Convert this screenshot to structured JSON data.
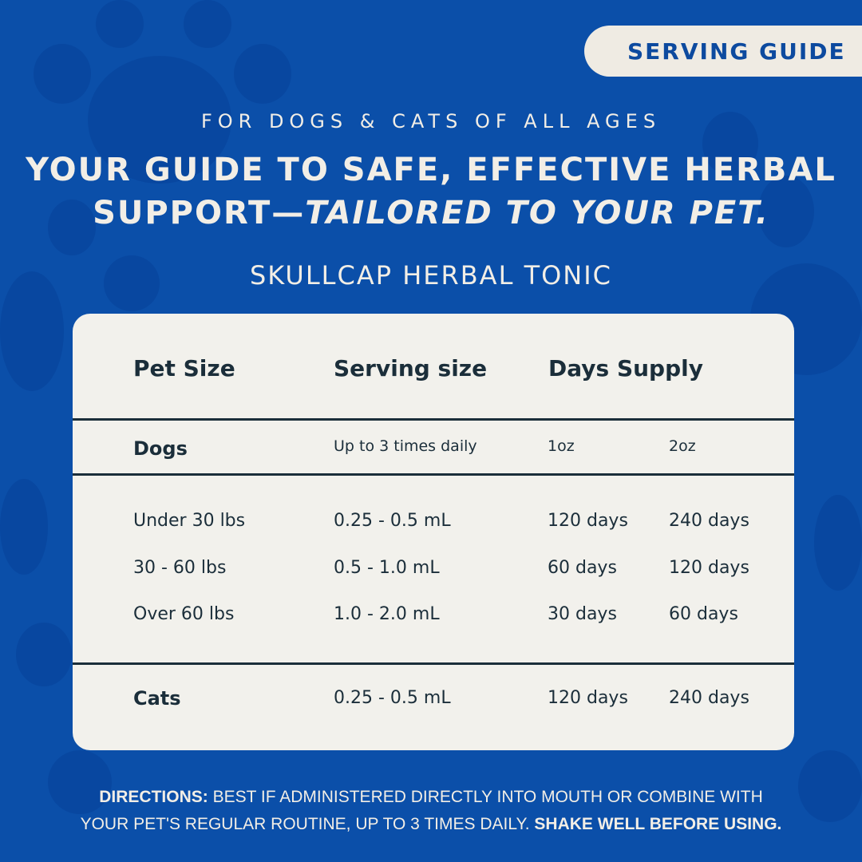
{
  "badge": "SERVING GUIDE",
  "subtitle": "FOR DOGS & CATS OF ALL AGES",
  "headline": {
    "line1": "YOUR GUIDE TO SAFE, EFFECTIVE HERBAL",
    "line2_plain": "SUPPORT—",
    "line2_italic": "TAILORED TO YOUR PET."
  },
  "product": "SKULLCAP HERBAL TONIC",
  "table": {
    "headers": [
      "Pet Size",
      "Serving size",
      "Days Supply"
    ],
    "dogs": {
      "label": "Dogs",
      "serving": "Up to 3 times daily",
      "col1": "1oz",
      "col2": "2oz"
    },
    "rows": [
      {
        "size": "Under 30 lbs",
        "serving": "0.25 - 0.5 mL",
        "oz1": "120 days",
        "oz2": "240 days"
      },
      {
        "size": "30 - 60 lbs",
        "serving": "0.5 - 1.0 mL",
        "oz1": "60 days",
        "oz2": "120 days"
      },
      {
        "size": "Over 60 lbs",
        "serving": "1.0 - 2.0 mL",
        "oz1": "30 days",
        "oz2": "60 days"
      }
    ],
    "cats": {
      "label": "Cats",
      "serving": "0.25 - 0.5 mL",
      "oz1": "120 days",
      "oz2": "240 days"
    }
  },
  "directions": {
    "label": "DIRECTIONS:",
    "text1": " BEST IF ADMINISTERED DIRECTLY INTO MOUTH OR COMBINE WITH",
    "text2": "YOUR PET'S REGULAR ROUTINE, UP TO 3 TIMES DAILY. ",
    "bold_end": "SHAKE WELL BEFORE USING."
  },
  "colors": {
    "background": "#0b4fa9",
    "card": "#f2f1ec",
    "text_dark": "#1b2e3a",
    "cream": "#f2eee6"
  }
}
